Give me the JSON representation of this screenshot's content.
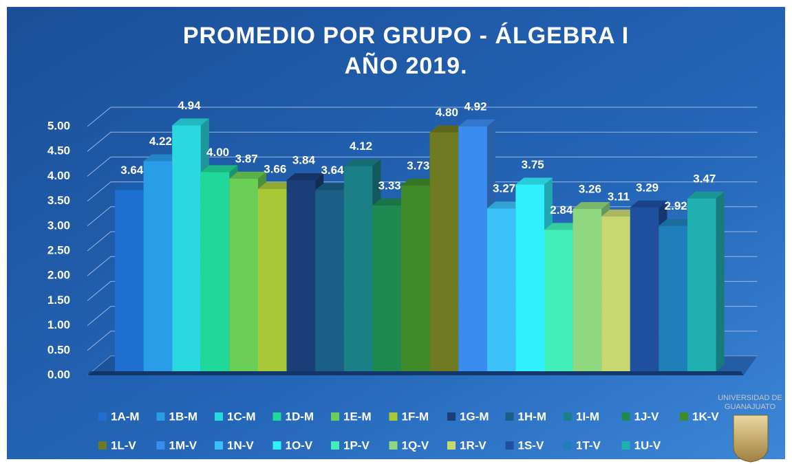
{
  "chart_data": {
    "type": "bar3d",
    "title": "PROMEDIO POR GRUPO - ÁLGEBRA I",
    "subtitle": "AÑO 2019.",
    "annotations": [
      "UNIVERSIDAD DE",
      "GUANAJUATO"
    ],
    "ylim": [
      0,
      5
    ],
    "yticks": [
      {
        "value": 0,
        "label": "0.00"
      },
      {
        "value": 0.5,
        "label": "0.50"
      },
      {
        "value": 1,
        "label": "1.00"
      },
      {
        "value": 1.5,
        "label": "1.50"
      },
      {
        "value": 2,
        "label": "2.00"
      },
      {
        "value": 2.5,
        "label": "2.50"
      },
      {
        "value": 3,
        "label": "3.00"
      },
      {
        "value": 3.5,
        "label": "3.50"
      },
      {
        "value": 4,
        "label": "4.00"
      },
      {
        "value": 4.5,
        "label": "4.50"
      },
      {
        "value": 5,
        "label": "5.00"
      }
    ],
    "grid": true,
    "legend": "bottom",
    "series": [
      {
        "name": "1A-M",
        "color": "#1f6fd1",
        "values": [
          3.64
        ]
      },
      {
        "name": "1B-M",
        "color": "#2a9de8",
        "values": [
          4.22
        ]
      },
      {
        "name": "1C-M",
        "color": "#2ad8e0",
        "values": [
          4.94
        ]
      },
      {
        "name": "1D-M",
        "color": "#1fd89a",
        "values": [
          4
        ],
        "value_labels": [
          "4.00"
        ]
      },
      {
        "name": "1E-M",
        "color": "#6ccf55",
        "values": [
          3.87
        ]
      },
      {
        "name": "1F-M",
        "color": "#a8c838",
        "values": [
          3.66
        ]
      },
      {
        "name": "1G-M",
        "color": "#1a3f78",
        "values": [
          3.84
        ]
      },
      {
        "name": "1H-M",
        "color": "#1a5f86",
        "values": [
          3.64
        ]
      },
      {
        "name": "1I-M",
        "color": "#1a7f86",
        "values": [
          4.12
        ]
      },
      {
        "name": "1J-V",
        "color": "#1f8a50",
        "values": [
          3.33
        ]
      },
      {
        "name": "1K-V",
        "color": "#3f8a2a",
        "values": [
          3.73
        ]
      },
      {
        "name": "1L-V",
        "color": "#6f7a22",
        "values": [
          4.8
        ],
        "value_labels": [
          "4.80"
        ]
      },
      {
        "name": "1M-V",
        "color": "#3a8cf0",
        "values": [
          4.92
        ]
      },
      {
        "name": "1N-V",
        "color": "#3cc0f8",
        "values": [
          3.27
        ]
      },
      {
        "name": "1O-V",
        "color": "#30f0ff",
        "values": [
          3.75
        ]
      },
      {
        "name": "1P-V",
        "color": "#40f0b8",
        "values": [
          2.84
        ]
      },
      {
        "name": "1Q-V",
        "color": "#90d880",
        "values": [
          3.26
        ]
      },
      {
        "name": "1R-V",
        "color": "#c8d870",
        "values": [
          3.11
        ]
      },
      {
        "name": "1S-V",
        "color": "#1f4f9f",
        "values": [
          3.29
        ]
      },
      {
        "name": "1T-V",
        "color": "#1f7fb8",
        "values": [
          2.92
        ]
      },
      {
        "name": "1U-V",
        "color": "#20b0b0",
        "values": [
          3.47
        ]
      }
    ]
  }
}
